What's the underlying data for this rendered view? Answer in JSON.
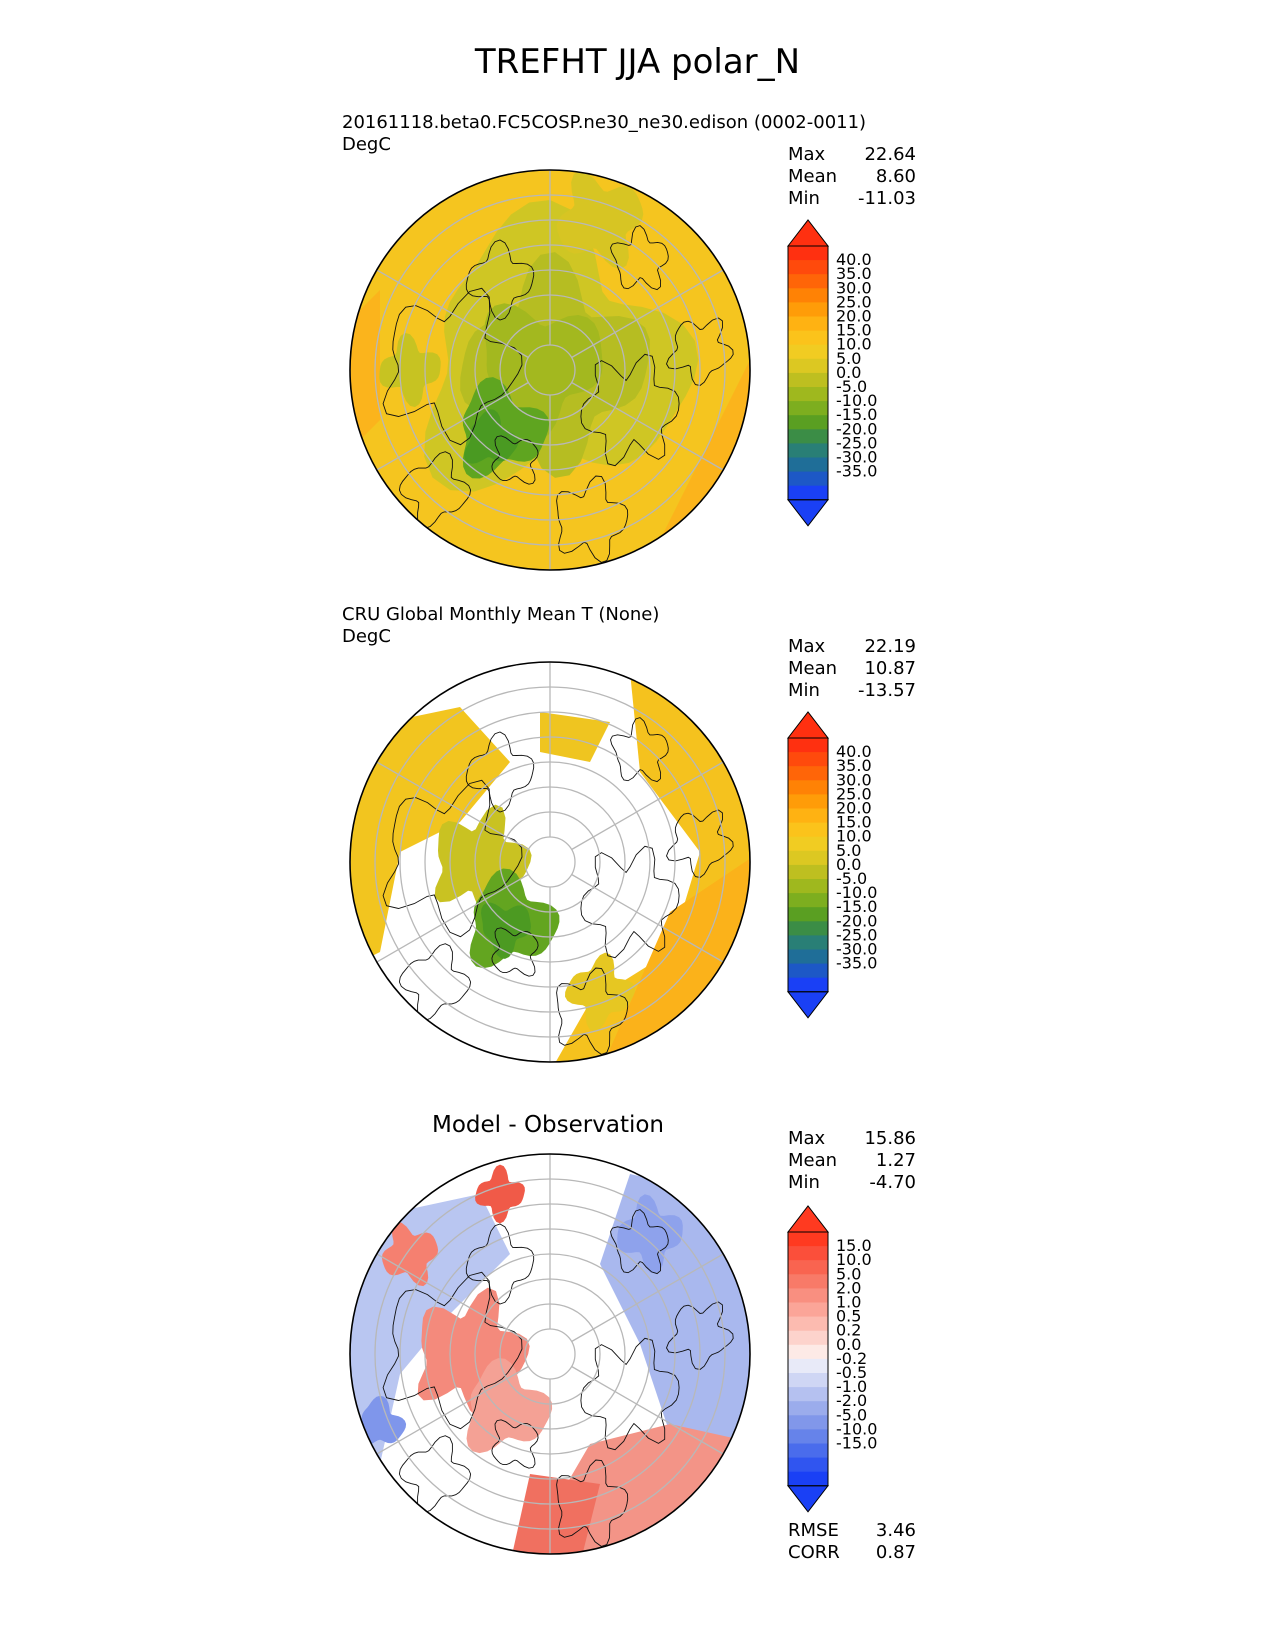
{
  "title": "TREFHT JJA polar_N",
  "panels": [
    {
      "id": "model",
      "title": "20161118.beta0.FC5COSP.ne30_ne30.edison (0002-0011)",
      "units": "DegC",
      "stats": [
        {
          "label": "Max",
          "value": "22.64"
        },
        {
          "label": "Mean",
          "value": "8.60"
        },
        {
          "label": "Min",
          "value": "-11.03"
        }
      ]
    },
    {
      "id": "obs",
      "title": "CRU Global Monthly Mean T (None)",
      "units": "DegC",
      "stats": [
        {
          "label": "Max",
          "value": "22.19"
        },
        {
          "label": "Mean",
          "value": "10.87"
        },
        {
          "label": "Min",
          "value": "-13.57"
        }
      ]
    },
    {
      "id": "diff",
      "title": "Model - Observation",
      "units": "",
      "stats": [
        {
          "label": "Max",
          "value": "15.86"
        },
        {
          "label": "Mean",
          "value": "1.27"
        },
        {
          "label": "Min",
          "value": "-4.70"
        }
      ],
      "metrics": [
        {
          "label": "RMSE",
          "value": "3.46"
        },
        {
          "label": "CORR",
          "value": "0.87"
        }
      ]
    }
  ],
  "colorbars": {
    "temperature": {
      "ticks": [
        "40.0",
        "35.0",
        "30.0",
        "25.0",
        "20.0",
        "15.0",
        "10.0",
        "5.0",
        "0.0",
        "-5.0",
        "-10.0",
        "-15.0",
        "-20.0",
        "-25.0",
        "-30.0",
        "-35.0"
      ],
      "colors": [
        "#ff3010",
        "#ff4a0c",
        "#ff6508",
        "#ff8205",
        "#ff9c08",
        "#ffb212",
        "#fbc31b",
        "#f1cc22",
        "#dcc822",
        "#bebf20",
        "#9fb81e",
        "#7dae1f",
        "#5a9f22",
        "#3b8d46",
        "#297f76",
        "#1f6e98",
        "#1d58c6",
        "#1a40f5"
      ],
      "over_color": "#ff3010",
      "under_color": "#1a40f5"
    },
    "difference": {
      "ticks": [
        "15.0",
        "10.0",
        "5.0",
        "2.0",
        "1.0",
        "0.5",
        "0.2",
        "0.0",
        "-0.2",
        "-0.5",
        "-1.0",
        "-2.0",
        "-5.0",
        "-10.0",
        "-15.0"
      ],
      "colors": [
        "#ff3a20",
        "#fb4f3a",
        "#f96450",
        "#f87a68",
        "#f98f80",
        "#fba598",
        "#fcbbb0",
        "#fdd3cc",
        "#fdeae6",
        "#e8eaf8",
        "#cfd6f4",
        "#b5c1f0",
        "#9bacec",
        "#8197ea",
        "#6683ea",
        "#4a6cec",
        "#3055f0",
        "#1a40f5"
      ],
      "over_color": "#ff3a20",
      "under_color": "#1a40f5"
    }
  },
  "chart_data": [
    {
      "type": "heatmap",
      "projection": "north polar stereographic",
      "title": "20161118.beta0.FC5COSP.ne30_ne30.edison (0002-0011)",
      "units": "DegC",
      "max": 22.64,
      "mean": 8.6,
      "min": -11.03,
      "colorbar_ticks": [
        40,
        35,
        30,
        25,
        20,
        15,
        10,
        5,
        0,
        -5,
        -10,
        -15,
        -20,
        -25,
        -30,
        -35
      ]
    },
    {
      "type": "heatmap",
      "projection": "north polar stereographic",
      "title": "CRU Global Monthly Mean T (None)",
      "units": "DegC",
      "max": 22.19,
      "mean": 10.87,
      "min": -13.57,
      "colorbar_ticks": [
        40,
        35,
        30,
        25,
        20,
        15,
        10,
        5,
        0,
        -5,
        -10,
        -15,
        -20,
        -25,
        -30,
        -35
      ]
    },
    {
      "type": "heatmap",
      "projection": "north polar stereographic",
      "title": "Model - Observation",
      "max": 15.86,
      "mean": 1.27,
      "min": -4.7,
      "rmse": 3.46,
      "corr": 0.87,
      "colorbar_ticks": [
        15,
        10,
        5,
        2,
        1,
        0.5,
        0.2,
        0,
        -0.2,
        -0.5,
        -1,
        -2,
        -5,
        -10,
        -15
      ]
    }
  ]
}
